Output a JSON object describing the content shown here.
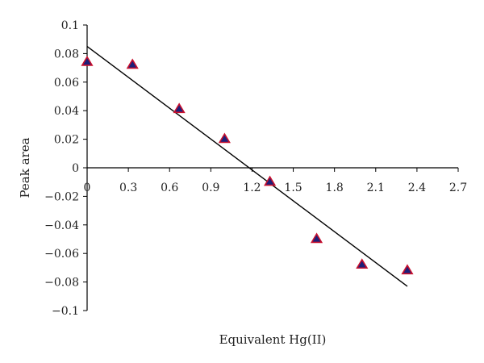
{
  "chart_data": {
    "type": "scatter",
    "title": "",
    "xlabel": "Equivalent Hg(II)",
    "ylabel": "Peak area",
    "xlim": [
      0,
      2.7
    ],
    "ylim": [
      -0.1,
      0.1
    ],
    "x_ticks": [
      "0",
      "0.3",
      "0.6",
      "0.9",
      "1.2",
      "1.5",
      "1.8",
      "2.1",
      "2.4",
      "2.7"
    ],
    "y_ticks": [
      "0.1",
      "0.08",
      "0.06",
      "0.04",
      "0.02",
      "0",
      "−0.02",
      "−0.04",
      "−0.06",
      "−0.08",
      "−0.1"
    ],
    "grid": false,
    "legend": "none",
    "series": [
      {
        "marker": "triangle",
        "marker_fill": "#1c1f7a",
        "marker_edge": "#c8102e",
        "x": [
          0,
          0.33,
          0.67,
          1.0,
          1.33,
          1.67,
          2.0,
          2.33
        ],
        "y": [
          0.074,
          0.072,
          0.041,
          0.02,
          -0.01,
          -0.05,
          -0.068,
          -0.072
        ]
      }
    ],
    "trendline": {
      "type": "linear",
      "color": "#000000",
      "x": [
        0,
        2.33
      ],
      "y": [
        0.085,
        -0.083
      ]
    }
  }
}
